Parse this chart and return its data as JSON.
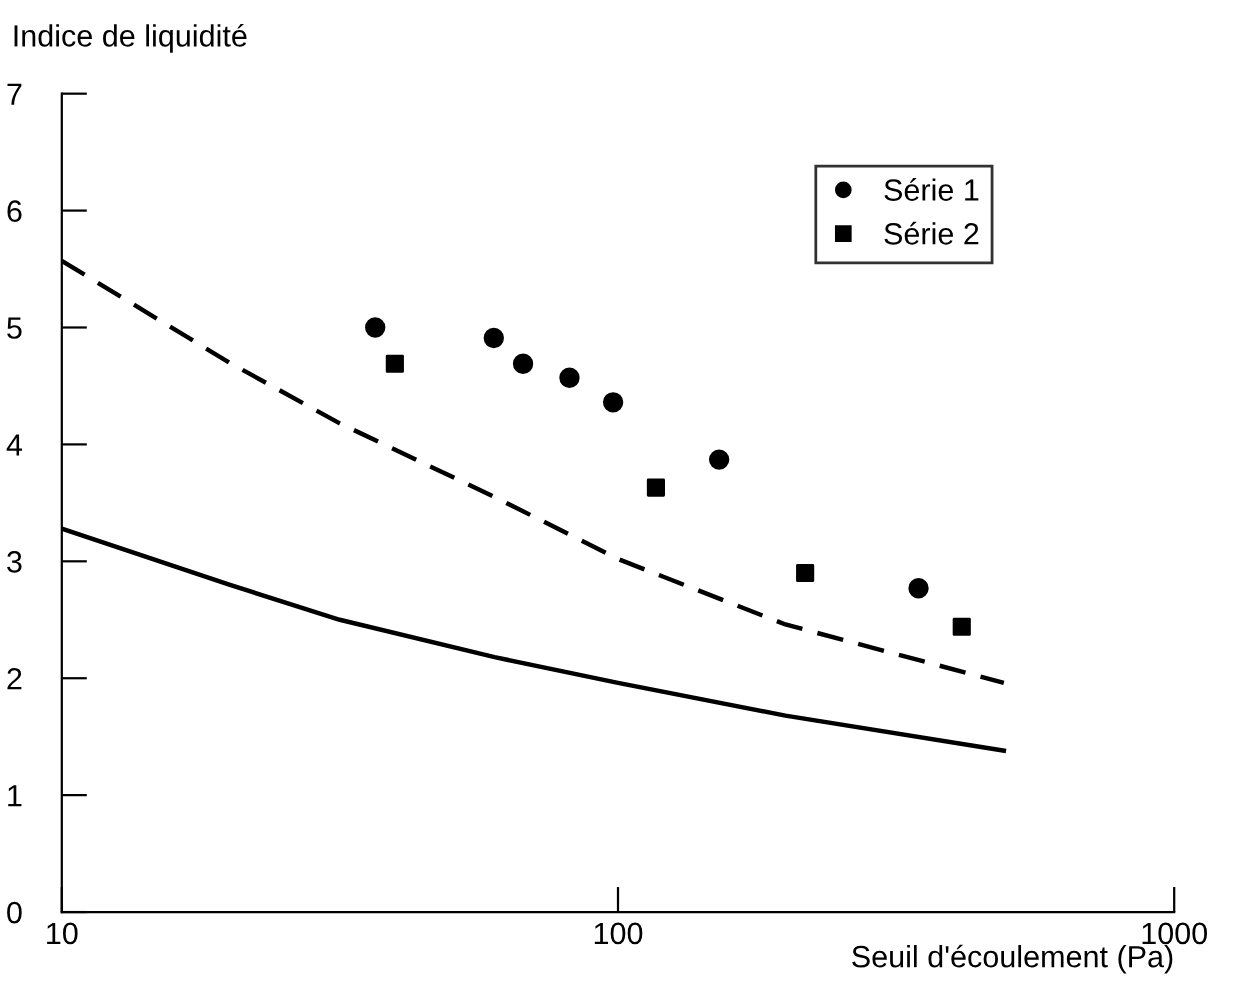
{
  "chart_data": {
    "type": "scatter",
    "xlabel": "Seuil d'écoulement (Pa)",
    "ylabel": "Indice de liquidité",
    "log": "x",
    "xlim": [
      10,
      1000
    ],
    "xticks": [
      10,
      100,
      1000
    ],
    "ylim": [
      0,
      7
    ],
    "yticks": [
      0,
      1,
      2,
      3,
      4,
      5,
      6,
      7
    ],
    "grid": false,
    "legend": "top right",
    "series": [
      {
        "name": "Série 1",
        "marker": "circle",
        "color": "#000000",
        "x": [
          36.6,
          59.8,
          67.5,
          81.8,
          98,
          152,
          347
        ],
        "values": [
          5.0,
          4.91,
          4.69,
          4.57,
          4.36,
          3.87,
          2.77
        ]
      },
      {
        "name": "Série 2",
        "marker": "square",
        "color": "#000000",
        "x": [
          39.7,
          117,
          217,
          415
        ],
        "values": [
          4.69,
          3.63,
          2.9,
          2.44
        ]
      },
      {
        "type": "line",
        "line_style": "dashed",
        "marker": "none",
        "color": "#000000",
        "x": [
          10,
          20,
          31.6,
          60,
          100,
          200,
          494
        ],
        "values": [
          5.57,
          4.7,
          4.18,
          3.55,
          3.02,
          2.46,
          1.96
        ]
      },
      {
        "type": "line",
        "line_style": "solid",
        "marker": "none",
        "color": "#000000",
        "x": [
          10,
          20,
          31.6,
          60,
          100,
          200,
          494
        ],
        "values": [
          3.28,
          2.8,
          2.5,
          2.18,
          1.96,
          1.68,
          1.38
        ]
      }
    ]
  }
}
